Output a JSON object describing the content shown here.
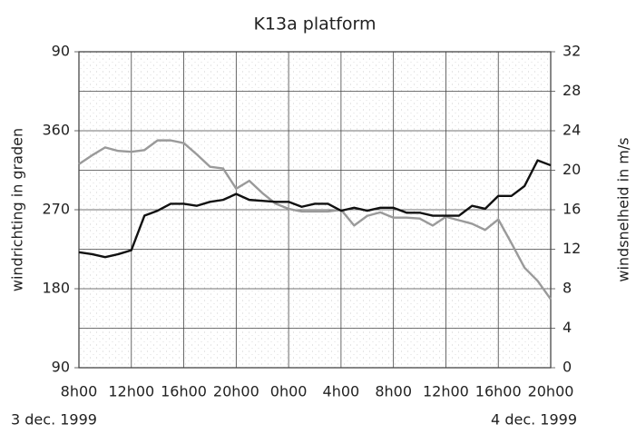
{
  "chart_data": {
    "type": "line",
    "title": "K13a platform",
    "y_label": "windrichting in graden",
    "y2_label": "windsnelheid in m/s",
    "annotations": [
      "3 dec. 1999",
      "4 dec. 1999"
    ],
    "x": [
      0,
      1,
      2,
      3,
      4,
      5,
      6,
      7,
      8,
      9,
      10,
      11,
      12,
      13,
      14,
      15,
      16,
      17,
      18,
      19,
      20,
      21,
      22,
      23,
      24,
      25,
      26,
      27,
      28,
      29,
      30,
      31,
      32,
      33,
      34,
      35,
      36
    ],
    "series": [
      {
        "color": "#9a9a9a",
        "axis": "y",
        "values": [
          322,
          332,
          341,
          337,
          336,
          338,
          349,
          349,
          346,
          333,
          319,
          317,
          294,
          303,
          289,
          277,
          271,
          268,
          268,
          268,
          270,
          252,
          263,
          267,
          261,
          261,
          260,
          252,
          262,
          258,
          254,
          247,
          259,
          232,
          204,
          189,
          168
        ]
      },
      {
        "color": "#111111",
        "axis": "y2",
        "values": [
          11.7,
          11.5,
          11.2,
          11.5,
          11.9,
          15.4,
          15.9,
          16.6,
          16.6,
          16.4,
          16.8,
          17.0,
          17.6,
          17.0,
          16.9,
          16.8,
          16.8,
          16.3,
          16.6,
          16.6,
          15.9,
          16.2,
          15.9,
          16.2,
          16.2,
          15.7,
          15.7,
          15.4,
          15.4,
          15.4,
          16.4,
          16.1,
          17.4,
          17.4,
          18.4,
          21.0,
          20.5
        ]
      }
    ],
    "xlim": [
      0,
      36
    ],
    "xticks": [
      {
        "value": 0,
        "label": "8h00"
      },
      {
        "value": 4,
        "label": "12h00"
      },
      {
        "value": 8,
        "label": "16h00"
      },
      {
        "value": 12,
        "label": "20h00"
      },
      {
        "value": 16,
        "label": "0h00"
      },
      {
        "value": 20,
        "label": "4h00"
      },
      {
        "value": 24,
        "label": "8h00"
      },
      {
        "value": 28,
        "label": "12h00"
      },
      {
        "value": 32,
        "label": "16h00"
      },
      {
        "value": 36,
        "label": "20h00"
      }
    ],
    "ylim": [
      90,
      450
    ],
    "yticks": [
      90,
      180,
      270,
      360,
      {
        "value": 450,
        "label": "90"
      }
    ],
    "y2lim": [
      0,
      32
    ],
    "y2ticks": [
      0,
      4,
      8,
      12,
      16,
      20,
      24,
      28,
      32
    ],
    "grid": true
  }
}
